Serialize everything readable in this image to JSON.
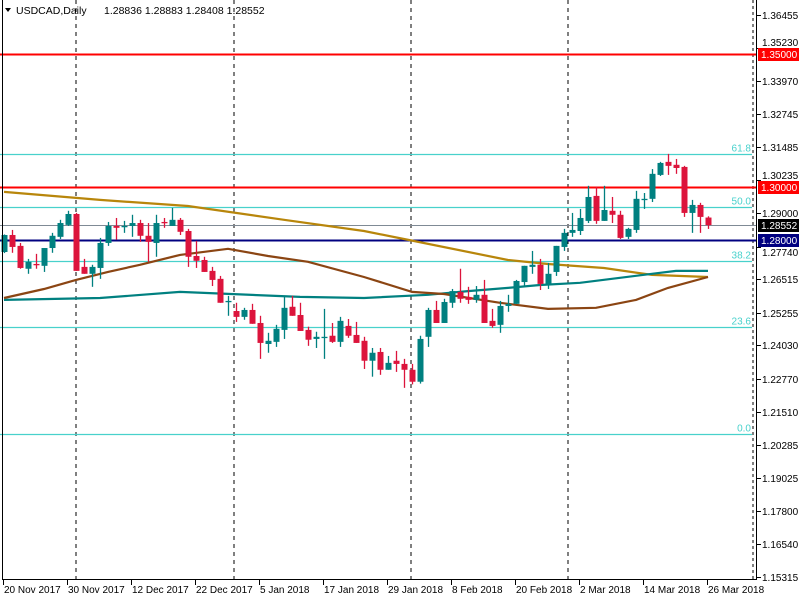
{
  "header": {
    "symbol": "USDCAD,Daily",
    "ohlc": "1.28836 1.28883 1.28408 1.28552"
  },
  "colors": {
    "bull": "#008080",
    "bear": "#dc143c",
    "fib": "#48d1cc",
    "resistance": "#ff0000",
    "support": "#000080",
    "current": "#7f8a95",
    "ma_gold": "#b8860b",
    "ma_teal": "#008080",
    "ma_brown": "#8b4513"
  },
  "chart_data": {
    "type": "candlestick",
    "title": "USDCAD,Daily",
    "ylim": [
      1.15315,
      1.36455
    ],
    "y_ticks": [
      "1.36455",
      "1.35230",
      "1.33970",
      "1.32745",
      "1.31485",
      "1.30235",
      "1.29000",
      "1.27740",
      "1.26515",
      "1.25255",
      "1.24030",
      "1.22770",
      "1.21510",
      "1.20285",
      "1.19025",
      "1.17800",
      "1.16540",
      "1.15315"
    ],
    "x_labels": [
      {
        "i": 0,
        "label": "20 Nov 2017"
      },
      {
        "i": 8,
        "label": "30 Nov 2017"
      },
      {
        "i": 16,
        "label": "12 Dec 2017"
      },
      {
        "i": 24,
        "label": "22 Dec 2017"
      },
      {
        "i": 32,
        "label": "5 Jan 2018"
      },
      {
        "i": 40,
        "label": "17 Jan 2018"
      },
      {
        "i": 48,
        "label": "29 Jan 2018"
      },
      {
        "i": 56,
        "label": "8 Feb 2018"
      },
      {
        "i": 64,
        "label": "20 Feb 2018"
      },
      {
        "i": 72,
        "label": "2 Mar 2018"
      },
      {
        "i": 80,
        "label": "14 Mar 2018"
      },
      {
        "i": 88,
        "label": "26 Mar 2018"
      }
    ],
    "ohlc": [
      [
        1.2754,
        1.282,
        1.275,
        1.2818
      ],
      [
        1.2818,
        1.2837,
        1.2751,
        1.2773
      ],
      [
        1.2777,
        1.2788,
        1.2691,
        1.2694
      ],
      [
        1.2691,
        1.2728,
        1.2672,
        1.2717
      ],
      [
        1.2709,
        1.2747,
        1.2691,
        1.2706
      ],
      [
        1.2702,
        1.2769,
        1.2679,
        1.2769
      ],
      [
        1.2769,
        1.2826,
        1.2751,
        1.2815
      ],
      [
        1.2811,
        1.2875,
        1.2803,
        1.2863
      ],
      [
        1.2856,
        1.2909,
        1.2852,
        1.2897
      ],
      [
        1.2897,
        1.2901,
        1.2683,
        1.2683
      ],
      [
        1.2698,
        1.2728,
        1.2672,
        1.2672
      ],
      [
        1.2672,
        1.2706,
        1.2623,
        1.2698
      ],
      [
        1.2694,
        1.2807,
        1.2653,
        1.2788
      ],
      [
        1.2788,
        1.2867,
        1.2777,
        1.2852
      ],
      [
        1.2852,
        1.2882,
        1.28,
        1.2845
      ],
      [
        1.2848,
        1.2871,
        1.2826,
        1.2852
      ],
      [
        1.2852,
        1.2894,
        1.2811,
        1.2863
      ],
      [
        1.2863,
        1.2875,
        1.2792,
        1.2815
      ],
      [
        1.2815,
        1.2863,
        1.2717,
        1.2792
      ],
      [
        1.2788,
        1.2894,
        1.2736,
        1.2863
      ],
      [
        1.2867,
        1.2882,
        1.2845,
        1.2863
      ],
      [
        1.2852,
        1.292,
        1.2852,
        1.2875
      ],
      [
        1.2875,
        1.2882,
        1.2818,
        1.283
      ],
      [
        1.2833,
        1.2841,
        1.2698,
        1.2736
      ],
      [
        1.2739,
        1.2796,
        1.2694,
        1.2721
      ],
      [
        1.2724,
        1.2736,
        1.2679,
        1.2679
      ],
      [
        1.2683,
        1.2698,
        1.2626,
        1.2649
      ],
      [
        1.2653,
        1.2664,
        1.2563,
        1.2563
      ],
      [
        1.2566,
        1.2589,
        1.2514,
        1.257
      ],
      [
        1.2532,
        1.2563,
        1.2491,
        1.251
      ],
      [
        1.251,
        1.2544,
        1.2499,
        1.2536
      ],
      [
        1.2536,
        1.2559,
        1.2484,
        1.2484
      ],
      [
        1.2487,
        1.2514,
        1.2352,
        1.2412
      ],
      [
        1.2408,
        1.245,
        1.2375,
        1.242
      ],
      [
        1.2416,
        1.248,
        1.2397,
        1.2465
      ],
      [
        1.2461,
        1.2585,
        1.2427,
        1.2544
      ],
      [
        1.2548,
        1.2589,
        1.2514,
        1.2514
      ],
      [
        1.2517,
        1.2563,
        1.2457,
        1.2457
      ],
      [
        1.2461,
        1.2473,
        1.2401,
        1.2424
      ],
      [
        1.2427,
        1.2454,
        1.2393,
        1.2435
      ],
      [
        1.2433,
        1.254,
        1.2352,
        1.2435
      ],
      [
        1.2439,
        1.2487,
        1.2412,
        1.2416
      ],
      [
        1.2416,
        1.251,
        1.2397,
        1.2495
      ],
      [
        1.2476,
        1.2502,
        1.2431,
        1.2439
      ],
      [
        1.2442,
        1.2491,
        1.2412,
        1.2412
      ],
      [
        1.242,
        1.2435,
        1.2314,
        1.2345
      ],
      [
        1.2345,
        1.2393,
        1.2285,
        1.2375
      ],
      [
        1.2378,
        1.2393,
        1.2292,
        1.2311
      ],
      [
        1.2311,
        1.2363,
        1.2311,
        1.2337
      ],
      [
        1.2345,
        1.2382,
        1.2303,
        1.2333
      ],
      [
        1.2333,
        1.2352,
        1.2243,
        1.2311
      ],
      [
        1.2311,
        1.2333,
        1.2256,
        1.2266
      ],
      [
        1.2266,
        1.2439,
        1.2259,
        1.2427
      ],
      [
        1.2435,
        1.2544,
        1.2397,
        1.2536
      ],
      [
        1.2536,
        1.257,
        1.2487,
        1.2487
      ],
      [
        1.2487,
        1.2578,
        1.2487,
        1.2566
      ],
      [
        1.2563,
        1.2615,
        1.2544,
        1.2607
      ],
      [
        1.2604,
        1.2691,
        1.2563,
        1.2578
      ],
      [
        1.2585,
        1.2623,
        1.2559,
        1.2574
      ],
      [
        1.2574,
        1.2626,
        1.2563,
        1.2593
      ],
      [
        1.2593,
        1.2649,
        1.2487,
        1.2487
      ],
      [
        1.2495,
        1.254,
        1.2469,
        1.2476
      ],
      [
        1.248,
        1.257,
        1.245,
        1.2551
      ],
      [
        1.2551,
        1.2593,
        1.2529,
        1.2559
      ],
      [
        1.2559,
        1.2649,
        1.2559,
        1.2645
      ],
      [
        1.2641,
        1.2702,
        1.2623,
        1.2702
      ],
      [
        1.2698,
        1.2758,
        1.2672,
        1.2706
      ],
      [
        1.2706,
        1.2728,
        1.2611,
        1.2634
      ],
      [
        1.2634,
        1.2713,
        1.2615,
        1.2672
      ],
      [
        1.2679,
        1.2777,
        1.2664,
        1.2777
      ],
      [
        1.2773,
        1.2841,
        1.2758,
        1.2826
      ],
      [
        1.2826,
        1.2901,
        1.2811,
        1.2837
      ],
      [
        1.2833,
        1.2916,
        1.2818,
        1.2882
      ],
      [
        1.2871,
        1.3003,
        1.2863,
        1.2961
      ],
      [
        1.2965,
        1.2999,
        1.286,
        1.2871
      ],
      [
        1.2871,
        1.3003,
        1.2871,
        1.2912
      ],
      [
        1.2909,
        1.2961,
        1.2863,
        1.2894
      ],
      [
        1.2894,
        1.2909,
        1.2803,
        1.2807
      ],
      [
        1.2811,
        1.2845,
        1.2803,
        1.2841
      ],
      [
        1.2837,
        1.2984,
        1.2826,
        1.2954
      ],
      [
        1.2952,
        1.2976,
        1.2916,
        1.2954
      ],
      [
        1.2954,
        1.3066,
        1.2942,
        1.3048
      ],
      [
        1.3044,
        1.3093,
        1.304,
        1.3089
      ],
      [
        1.3093,
        1.3123,
        1.3044,
        1.3078
      ],
      [
        1.3082,
        1.3104,
        1.3048,
        1.307
      ],
      [
        1.3074,
        1.3078,
        1.2886,
        1.2901
      ],
      [
        1.2901,
        1.295,
        1.2826,
        1.2931
      ],
      [
        1.2931,
        1.2939,
        1.2826,
        1.2886
      ],
      [
        1.28836,
        1.28883,
        1.28408,
        1.28552
      ]
    ],
    "moving_averages": [
      {
        "name": "ma-gold",
        "color_key": "ma_gold",
        "points": [
          [
            0,
            1.298
          ],
          [
            12,
            1.295
          ],
          [
            23,
            1.2927
          ],
          [
            35,
            1.2875
          ],
          [
            45,
            1.2833
          ],
          [
            50,
            1.2803
          ],
          [
            63,
            1.2724
          ],
          [
            68,
            1.2709
          ],
          [
            75,
            1.2694
          ],
          [
            81,
            1.2668
          ],
          [
            88,
            1.266
          ]
        ]
      },
      {
        "name": "ma-teal",
        "color_key": "ma_teal",
        "points": [
          [
            0,
            1.2574
          ],
          [
            12,
            1.2581
          ],
          [
            22,
            1.2604
          ],
          [
            37,
            1.2585
          ],
          [
            45,
            1.2581
          ],
          [
            53,
            1.2593
          ],
          [
            58,
            1.2607
          ],
          [
            63,
            1.2619
          ],
          [
            67,
            1.263
          ],
          [
            72,
            1.2638
          ],
          [
            77,
            1.2657
          ],
          [
            81,
            1.2672
          ],
          [
            84,
            1.2683
          ],
          [
            88,
            1.2683
          ]
        ]
      },
      {
        "name": "ma-brown",
        "color_key": "ma_brown",
        "points": [
          [
            0,
            1.2581
          ],
          [
            5,
            1.2615
          ],
          [
            9,
            1.2649
          ],
          [
            13,
            1.2679
          ],
          [
            17,
            1.2706
          ],
          [
            22,
            1.2743
          ],
          [
            28,
            1.2766
          ],
          [
            33,
            1.2739
          ],
          [
            38,
            1.2717
          ],
          [
            45,
            1.266
          ],
          [
            51,
            1.2604
          ],
          [
            55,
            1.2596
          ],
          [
            62,
            1.2563
          ],
          [
            68,
            1.254
          ],
          [
            74,
            1.2544
          ],
          [
            79,
            1.2574
          ],
          [
            83,
            1.2619
          ],
          [
            88,
            1.266
          ]
        ]
      }
    ],
    "horizontal_levels": [
      {
        "name": "resistance-1-35",
        "price": 1.35,
        "label": "1.35000",
        "color_key": "resistance"
      },
      {
        "name": "resistance-1-30",
        "price": 1.3,
        "label": "1.30000",
        "color_key": "resistance"
      },
      {
        "name": "current-price",
        "price": 1.28552,
        "label": "1.28552",
        "color_key": "current"
      },
      {
        "name": "support-1-28",
        "price": 1.28,
        "label": "1.28000",
        "color_key": "support"
      }
    ],
    "fibonacci": [
      {
        "label": "61.8",
        "price": 1.3123
      },
      {
        "label": "50.0",
        "price": 1.2922
      },
      {
        "label": "38.2",
        "price": 1.2721
      },
      {
        "label": "23.6",
        "price": 1.2472
      },
      {
        "label": "0.0",
        "price": 1.207
      }
    ]
  }
}
